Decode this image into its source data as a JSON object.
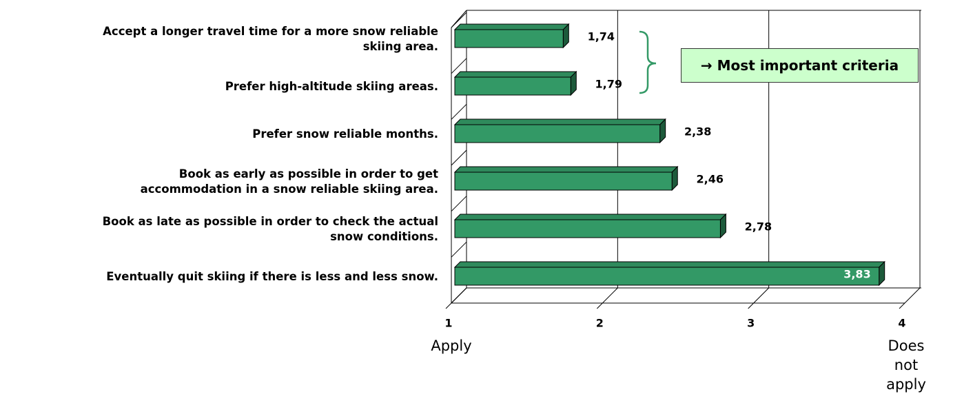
{
  "chart_data": {
    "type": "bar3d",
    "orientation": "horizontal",
    "categories": [
      "Accept a longer travel time for a more snow reliable\nskiing area.",
      "Prefer high-altitude skiing areas.",
      "Prefer snow reliable months.",
      "Book as early as possible in order to get\naccommodation in a snow reliable skiing area.",
      "Book as late as possible in order to check the actual\nsnow conditions.",
      "Eventually quit skiing if there is less and less snow."
    ],
    "values": [
      1.74,
      1.79,
      2.38,
      2.46,
      2.78,
      3.83
    ],
    "value_labels": [
      "1,74",
      "1,79",
      "2,38",
      "2,46",
      "2,78",
      "3,83"
    ],
    "color": "#339966",
    "xlim": [
      1,
      4
    ],
    "xticks": [
      1,
      2,
      3,
      4
    ],
    "grid": true,
    "x_axis_left_label": "Apply",
    "x_axis_right_label": "Does not\napply",
    "annotation": "→ Most important criteria"
  }
}
